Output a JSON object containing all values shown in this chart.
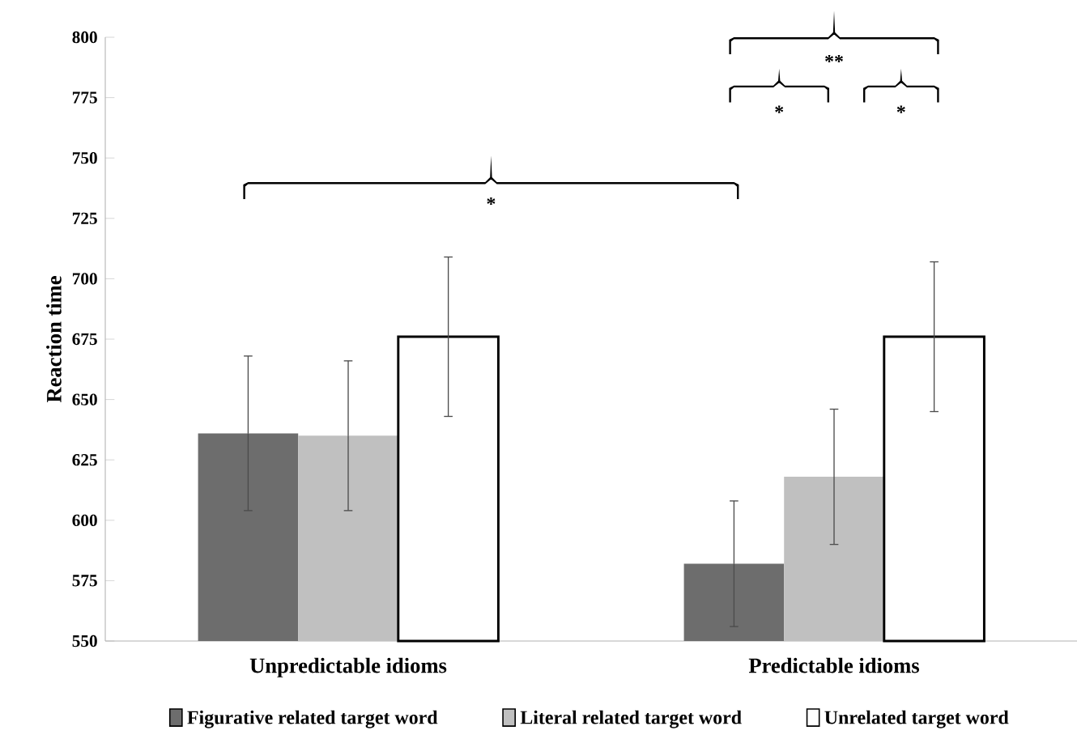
{
  "chart_data": {
    "type": "bar",
    "ylabel": "Reaction time",
    "categories": [
      "Unpredictable idioms",
      "Predictable idioms"
    ],
    "series": [
      {
        "name": "Figurative related target word",
        "color": "#6d6d6d",
        "values": [
          636,
          582
        ],
        "errors": [
          32,
          26
        ]
      },
      {
        "name": "Literal related target word",
        "color": "#c0c0c0",
        "values": [
          635,
          618
        ],
        "errors": [
          31,
          28
        ]
      },
      {
        "name": "Unrelated target word",
        "color": "#ffffff",
        "values": [
          676,
          676
        ],
        "errors": [
          33,
          31
        ]
      }
    ],
    "ylim": [
      550,
      800
    ],
    "yticks": [
      550,
      575,
      600,
      625,
      650,
      675,
      700,
      725,
      750,
      775,
      800
    ],
    "annotations": [
      "*",
      "**",
      "*",
      "*"
    ],
    "grid": false,
    "legend": "bottom"
  }
}
